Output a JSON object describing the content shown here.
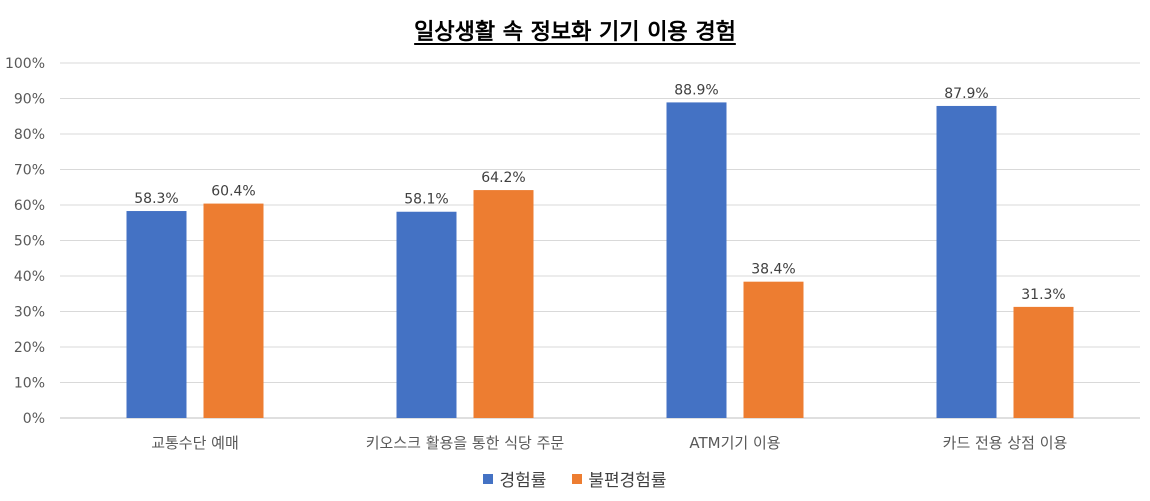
{
  "chart_data": {
    "type": "bar",
    "title": "일상생활 속 정보화 기기 이용  경험",
    "categories": [
      "교통수단 예매",
      "키오스크 활용을 통한 식당 주문",
      "ATM기기 이용",
      "카드 전용 상점 이용"
    ],
    "series": [
      {
        "name": "경험률",
        "values": [
          58.3,
          58.1,
          88.9,
          87.9
        ],
        "labels": [
          "58.3%",
          "58.1%",
          "88.9%",
          "87.9%"
        ],
        "color": "#4472C4"
      },
      {
        "name": "불편경험률",
        "values": [
          60.4,
          64.2,
          38.4,
          31.3
        ],
        "labels": [
          "60.4%",
          "64.2%",
          "38.4%",
          "31.3%"
        ],
        "color": "#ED7D31"
      }
    ],
    "ylim": [
      0,
      100
    ],
    "yticks": [
      "0%",
      "10%",
      "20%",
      "30%",
      "40%",
      "50%",
      "60%",
      "70%",
      "80%",
      "90%",
      "100%"
    ],
    "grid": true,
    "legend_position": "bottom"
  }
}
